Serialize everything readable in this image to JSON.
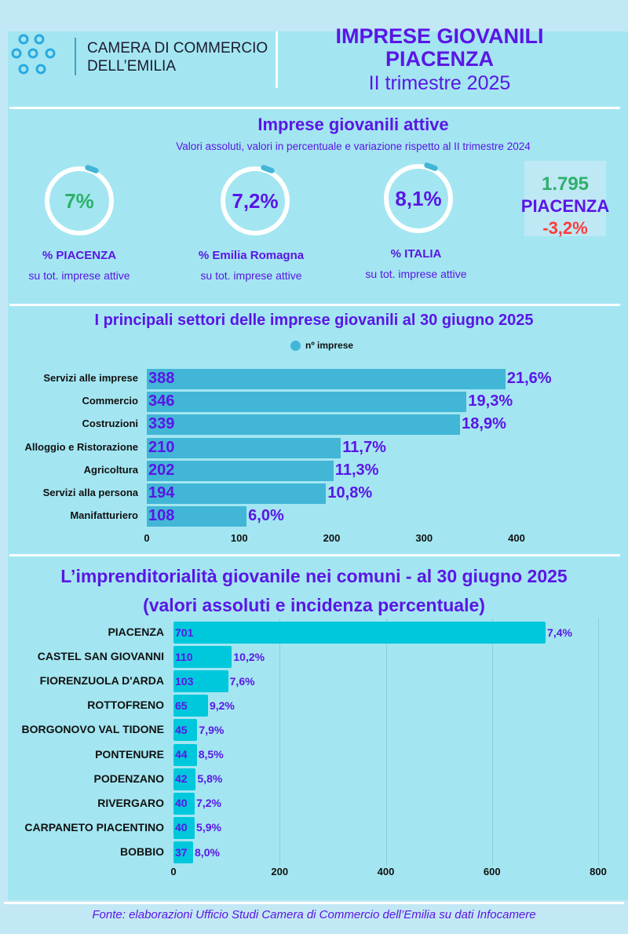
{
  "header": {
    "org_line1": "CAMERA DI COMMERCIO",
    "org_line2": "DELL’EMILIA",
    "title1": "IMPRESE GIOVANILI",
    "title2": "PIACENZA",
    "period": "II trimestre 2025"
  },
  "kpi": {
    "title": "Imprese giovanili attive",
    "subtitle": "Valori assoluti, valori in percentuale e variazione rispetto al II trimestre 2024",
    "rings": [
      {
        "value": "7%",
        "label": "%  PIACENZA",
        "sub": "su tot. imprese attive",
        "color": "#2eb06a"
      },
      {
        "value": "7,2%",
        "label": "%  Emilia Romagna",
        "sub": "su tot. imprese attive",
        "color": "#5a16e6"
      },
      {
        "value": "8,1%",
        "label": "%  ITALIA",
        "sub": "su tot. imprese attive",
        "color": "#5a16e6"
      }
    ],
    "box": {
      "count": "1.795",
      "place": "PIACENZA",
      "change": "-3,2%"
    }
  },
  "colors": {
    "purple": "#5a16e6",
    "green": "#2eb06a",
    "red": "#ff3b3b",
    "bar1": "#42b6d6",
    "bar2": "#00c8dc"
  },
  "chart_data": [
    {
      "type": "bar",
      "orientation": "horizontal",
      "title": "I principali settori  delle imprese giovanili  al 30 giugno  2025",
      "legend": "nº imprese",
      "legend_position": "top",
      "categories": [
        "Servizi alle imprese",
        "Commercio",
        "Costruzioni",
        "Alloggio e Ristorazione",
        "Agricoltura",
        "Servizi alla persona",
        "Manifatturiero"
      ],
      "values": [
        388,
        346,
        339,
        210,
        202,
        194,
        108
      ],
      "percent_labels": [
        "21,6%",
        "19,3%",
        "18,9%",
        "11,7%",
        "11,3%",
        "10,8%",
        "6,0%"
      ],
      "xlim": [
        0,
        400
      ],
      "xticks": [
        "0",
        "100",
        "200",
        "300",
        "400"
      ],
      "grid": false
    },
    {
      "type": "bar",
      "orientation": "horizontal",
      "title": "L’imprenditorialità giovanile nei comuni  - al 30 giugno 2025",
      "subtitle": "(valori assoluti e incidenza percentuale)",
      "categories": [
        "PIACENZA",
        "CASTEL SAN GIOVANNI",
        "FIORENZUOLA D'ARDA",
        "ROTTOFRENO",
        "BORGONOVO VAL TIDONE",
        "PONTENURE",
        "PODENZANO",
        "RIVERGARO",
        "CARPANETO PIACENTINO",
        "BOBBIO"
      ],
      "values": [
        701,
        110,
        103,
        65,
        45,
        44,
        42,
        40,
        40,
        37
      ],
      "percent_labels": [
        "7,4%",
        "10,2%",
        "7,6%",
        "9,2%",
        "7,9%",
        "8,5%",
        "5,8%",
        "7,2%",
        "5,9%",
        "8,0%"
      ],
      "xlim": [
        0,
        800
      ],
      "xticks": [
        "0",
        "200",
        "400",
        "600",
        "800"
      ],
      "grid": true
    }
  ],
  "footer": "Fonte: elaborazioni Ufficio Studi Camera di Commercio dell’Emilia su dati Infocamere"
}
